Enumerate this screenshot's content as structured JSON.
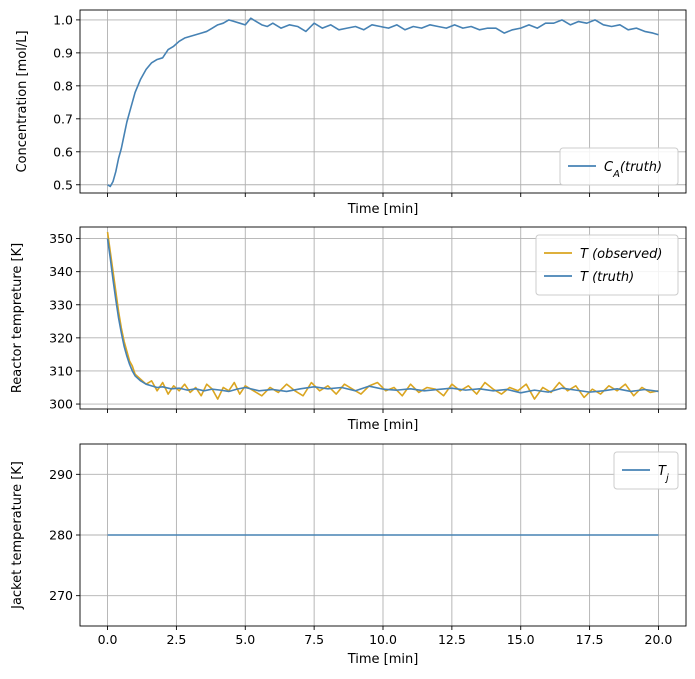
{
  "chart_data": [
    {
      "type": "line",
      "ylabel": "Concentration [mol/L]",
      "xlabel": "Time [min]",
      "xlim": [
        -1.0,
        21.0
      ],
      "ylim": [
        0.475,
        1.03
      ],
      "xticks": [
        0.0,
        2.5,
        5.0,
        7.5,
        10.0,
        12.5,
        15.0,
        17.5,
        20.0
      ],
      "xtick_labels_visible": false,
      "yticks": [
        0.5,
        0.6,
        0.7,
        0.8,
        0.9,
        1.0
      ],
      "ytick_labels": [
        "0.5",
        "0.6",
        "0.7",
        "0.8",
        "0.9",
        "1.0"
      ],
      "grid": true,
      "legend_placement": "lower-right",
      "series": [
        {
          "name": "C_A(truth)",
          "color": "#4682b4",
          "x": [
            0.0,
            0.1,
            0.2,
            0.3,
            0.4,
            0.5,
            0.6,
            0.7,
            0.8,
            0.9,
            1.0,
            1.2,
            1.4,
            1.6,
            1.8,
            2.0,
            2.2,
            2.4,
            2.6,
            2.8,
            3.0,
            3.2,
            3.4,
            3.6,
            3.8,
            4.0,
            4.2,
            4.4,
            4.6,
            4.8,
            5.0,
            5.2,
            5.4,
            5.6,
            5.8,
            6.0,
            6.3,
            6.6,
            6.9,
            7.2,
            7.5,
            7.8,
            8.1,
            8.4,
            8.7,
            9.0,
            9.3,
            9.6,
            9.9,
            10.2,
            10.5,
            10.8,
            11.1,
            11.4,
            11.7,
            12.0,
            12.3,
            12.6,
            12.9,
            13.2,
            13.5,
            13.8,
            14.1,
            14.4,
            14.7,
            15.0,
            15.3,
            15.6,
            15.9,
            16.2,
            16.5,
            16.8,
            17.1,
            17.4,
            17.7,
            18.0,
            18.3,
            18.6,
            18.9,
            19.2,
            19.5,
            19.8,
            20.0
          ],
          "y": [
            0.5,
            0.495,
            0.51,
            0.54,
            0.58,
            0.61,
            0.65,
            0.69,
            0.72,
            0.75,
            0.78,
            0.82,
            0.85,
            0.87,
            0.88,
            0.885,
            0.91,
            0.92,
            0.935,
            0.945,
            0.95,
            0.955,
            0.96,
            0.965,
            0.975,
            0.985,
            0.99,
            1.0,
            0.995,
            0.99,
            0.985,
            1.005,
            0.995,
            0.985,
            0.98,
            0.99,
            0.975,
            0.985,
            0.98,
            0.965,
            0.99,
            0.975,
            0.985,
            0.97,
            0.975,
            0.98,
            0.97,
            0.985,
            0.98,
            0.975,
            0.985,
            0.97,
            0.98,
            0.975,
            0.985,
            0.98,
            0.975,
            0.985,
            0.975,
            0.98,
            0.97,
            0.975,
            0.975,
            0.96,
            0.97,
            0.975,
            0.985,
            0.975,
            0.99,
            0.99,
            1.0,
            0.985,
            0.995,
            0.99,
            1.0,
            0.985,
            0.98,
            0.985,
            0.97,
            0.975,
            0.965,
            0.96,
            0.955
          ]
        }
      ]
    },
    {
      "type": "line",
      "ylabel": "Reactor tempreture [K]",
      "xlabel": "Time [min]",
      "xlim": [
        -1.0,
        21.0
      ],
      "ylim": [
        298.5,
        353.5
      ],
      "xticks": [
        0.0,
        2.5,
        5.0,
        7.5,
        10.0,
        12.5,
        15.0,
        17.5,
        20.0
      ],
      "xtick_labels_visible": false,
      "yticks": [
        300,
        310,
        320,
        330,
        340,
        350
      ],
      "ytick_labels": [
        "300",
        "310",
        "320",
        "330",
        "340",
        "350"
      ],
      "grid": true,
      "legend_placement": "upper-right",
      "series": [
        {
          "name": "T (observed)",
          "color": "#daa520",
          "x": [
            0.0,
            0.1,
            0.2,
            0.3,
            0.4,
            0.5,
            0.6,
            0.7,
            0.8,
            0.9,
            1.0,
            1.2,
            1.4,
            1.6,
            1.8,
            2.0,
            2.2,
            2.4,
            2.6,
            2.8,
            3.0,
            3.2,
            3.4,
            3.6,
            3.8,
            4.0,
            4.2,
            4.4,
            4.6,
            4.8,
            5.0,
            5.3,
            5.6,
            5.9,
            6.2,
            6.5,
            6.8,
            7.1,
            7.4,
            7.7,
            8.0,
            8.3,
            8.6,
            8.9,
            9.2,
            9.5,
            9.8,
            10.1,
            10.4,
            10.7,
            11.0,
            11.3,
            11.6,
            11.9,
            12.2,
            12.5,
            12.8,
            13.1,
            13.4,
            13.7,
            14.0,
            14.3,
            14.6,
            14.9,
            15.2,
            15.5,
            15.8,
            16.1,
            16.4,
            16.7,
            17.0,
            17.3,
            17.6,
            17.9,
            18.2,
            18.5,
            18.8,
            19.1,
            19.4,
            19.7,
            20.0
          ],
          "y": [
            352.0,
            346.0,
            340.0,
            334.0,
            328.0,
            323.0,
            319.0,
            316.0,
            313.0,
            311.5,
            309.0,
            307.5,
            306.0,
            307.0,
            304.0,
            306.5,
            303.0,
            305.5,
            304.0,
            306.0,
            303.5,
            305.0,
            302.5,
            306.0,
            304.5,
            301.5,
            305.0,
            304.0,
            306.5,
            303.0,
            305.5,
            304.0,
            302.5,
            305.0,
            303.5,
            306.0,
            304.0,
            302.5,
            306.5,
            304.0,
            305.5,
            303.0,
            306.0,
            304.5,
            303.0,
            305.5,
            306.5,
            304.0,
            305.0,
            302.5,
            306.0,
            303.5,
            305.0,
            304.5,
            302.5,
            306.0,
            304.0,
            305.5,
            303.0,
            306.5,
            304.5,
            303.0,
            305.0,
            304.0,
            306.0,
            301.5,
            305.0,
            303.5,
            306.5,
            304.0,
            305.5,
            302.0,
            304.5,
            303.0,
            305.5,
            304.0,
            306.0,
            302.5,
            305.0,
            303.5,
            304.0
          ]
        },
        {
          "name": "T (truth)",
          "color": "#4682b4",
          "x": [
            0.0,
            0.1,
            0.2,
            0.3,
            0.4,
            0.5,
            0.6,
            0.7,
            0.8,
            0.9,
            1.0,
            1.2,
            1.4,
            1.6,
            1.8,
            2.0,
            2.3,
            2.6,
            2.9,
            3.2,
            3.5,
            3.8,
            4.1,
            4.4,
            4.7,
            5.0,
            5.5,
            6.0,
            6.5,
            7.0,
            7.5,
            8.0,
            8.5,
            9.0,
            9.5,
            10.0,
            10.5,
            11.0,
            11.5,
            12.0,
            12.5,
            13.0,
            13.5,
            14.0,
            14.5,
            15.0,
            15.5,
            16.0,
            16.5,
            17.0,
            17.5,
            18.0,
            18.5,
            19.0,
            19.5,
            20.0
          ],
          "y": [
            350.0,
            344.0,
            337.5,
            331.5,
            326.0,
            321.5,
            317.5,
            314.5,
            312.0,
            310.0,
            308.5,
            307.0,
            306.0,
            305.5,
            305.0,
            305.2,
            304.6,
            304.8,
            304.2,
            304.6,
            304.0,
            304.5,
            304.2,
            303.8,
            304.5,
            305.0,
            304.0,
            304.4,
            303.8,
            304.6,
            305.2,
            304.6,
            305.0,
            304.0,
            305.4,
            304.5,
            304.2,
            304.6,
            304.0,
            304.4,
            304.8,
            304.2,
            304.6,
            304.0,
            304.4,
            303.4,
            304.2,
            303.6,
            304.8,
            304.2,
            303.6,
            304.0,
            304.6,
            303.8,
            304.4,
            303.8
          ]
        }
      ]
    },
    {
      "type": "line",
      "ylabel": "Jacket temperature [K]",
      "xlabel": "Time [min]",
      "xlim": [
        -1.0,
        21.0
      ],
      "ylim": [
        265.0,
        295.0
      ],
      "xticks": [
        0.0,
        2.5,
        5.0,
        7.5,
        10.0,
        12.5,
        15.0,
        17.5,
        20.0
      ],
      "xtick_labels": [
        "0.0",
        "2.5",
        "5.0",
        "7.5",
        "10.0",
        "12.5",
        "15.0",
        "17.5",
        "20.0"
      ],
      "xtick_labels_visible": true,
      "yticks": [
        270,
        280,
        290
      ],
      "ytick_labels": [
        "270",
        "280",
        "290"
      ],
      "grid": true,
      "legend_placement": "upper-right",
      "series": [
        {
          "name": "T_j",
          "color": "#4682b4",
          "x": [
            0.0,
            20.0
          ],
          "y": [
            280.0,
            280.0
          ]
        }
      ]
    }
  ]
}
